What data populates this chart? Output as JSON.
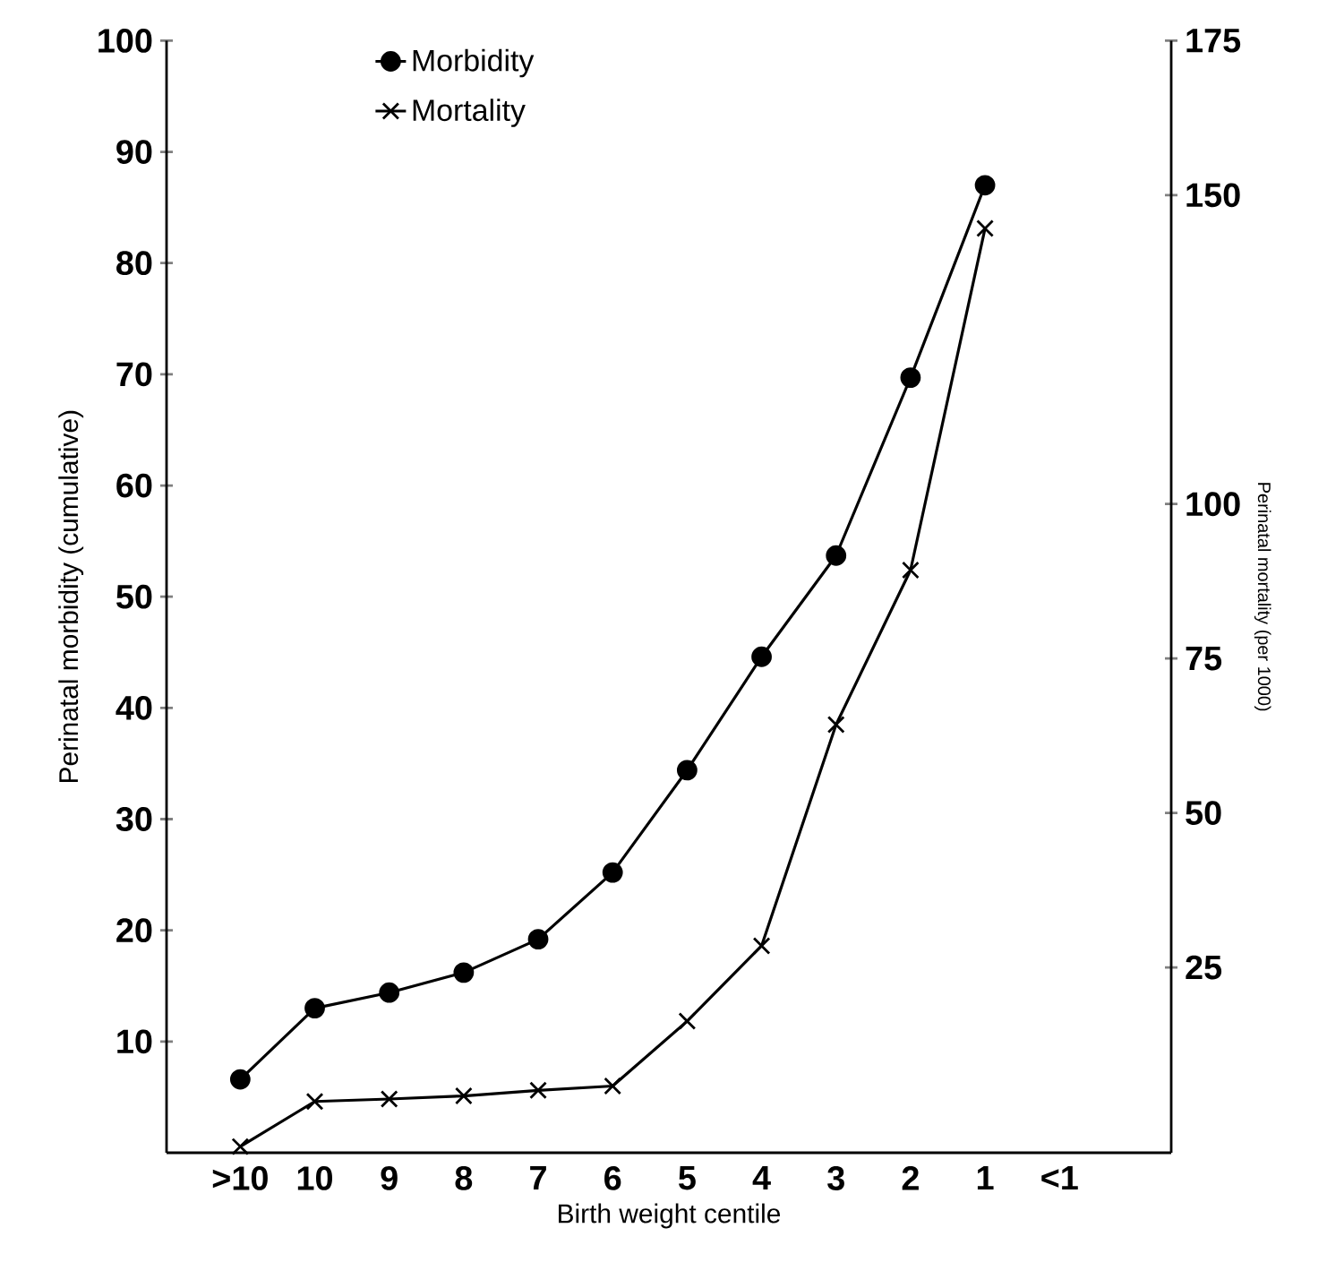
{
  "chart_data": {
    "type": "line",
    "xlabel": "Birth weight centile",
    "ylabel": "Perinatal morbidity (cumulative)",
    "y2label": "Perinatal mortality (per 1000)",
    "categories": [
      ">10",
      "10",
      "9",
      "8",
      "7",
      "6",
      "5",
      "4",
      "3",
      "2",
      "1",
      "<1"
    ],
    "series": [
      {
        "name": "Morbidity",
        "color": "#000000",
        "marker": "circle",
        "values": [
          6.6,
          13.0,
          14.4,
          16.2,
          19.2,
          25.2,
          34.4,
          44.6,
          53.7,
          69.7,
          87.0,
          null
        ]
      },
      {
        "name": "Mortality",
        "color": "#000000",
        "marker": "cross",
        "axis": "y2",
        "values": [
          -4,
          3.3,
          3.7,
          4.2,
          5.1,
          5.8,
          16.3,
          28.5,
          64.3,
          89.3,
          144.6,
          null
        ]
      }
    ],
    "ylim": [
      0,
      100
    ],
    "yticks": [
      10,
      20,
      30,
      40,
      50,
      60,
      70,
      80,
      90,
      100
    ],
    "y2lim": [
      -5,
      175
    ],
    "y2ticks": [
      25,
      50,
      75,
      100,
      150,
      175
    ],
    "grid": false,
    "legend": "top left",
    "line_style": "solid"
  }
}
